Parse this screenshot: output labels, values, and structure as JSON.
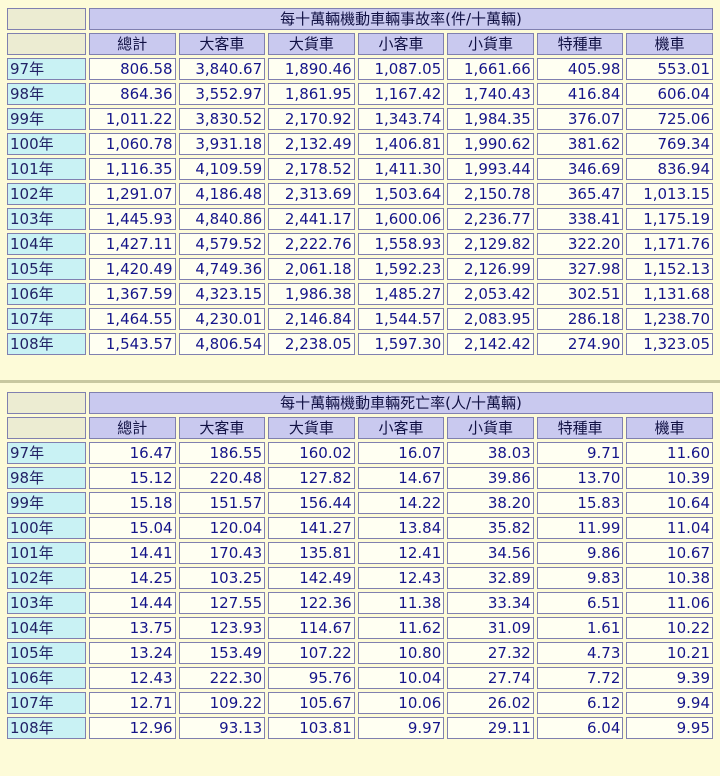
{
  "tables": [
    {
      "title": "每十萬輛機動車輛事故率(件/十萬輛)",
      "headers": [
        "總計",
        "大客車",
        "大貨車",
        "小客車",
        "小貨車",
        "特種車",
        "機車"
      ],
      "rows": [
        {
          "year": "97年",
          "values": [
            "806.58",
            "3,840.67",
            "1,890.46",
            "1,087.05",
            "1,661.66",
            "405.98",
            "553.01"
          ]
        },
        {
          "year": "98年",
          "values": [
            "864.36",
            "3,552.97",
            "1,861.95",
            "1,167.42",
            "1,740.43",
            "416.84",
            "606.04"
          ]
        },
        {
          "year": "99年",
          "values": [
            "1,011.22",
            "3,830.52",
            "2,170.92",
            "1,343.74",
            "1,984.35",
            "376.07",
            "725.06"
          ]
        },
        {
          "year": "100年",
          "values": [
            "1,060.78",
            "3,931.18",
            "2,132.49",
            "1,406.81",
            "1,990.62",
            "381.62",
            "769.34"
          ]
        },
        {
          "year": "101年",
          "values": [
            "1,116.35",
            "4,109.59",
            "2,178.52",
            "1,411.30",
            "1,993.44",
            "346.69",
            "836.94"
          ]
        },
        {
          "year": "102年",
          "values": [
            "1,291.07",
            "4,186.48",
            "2,313.69",
            "1,503.64",
            "2,150.78",
            "365.47",
            "1,013.15"
          ]
        },
        {
          "year": "103年",
          "values": [
            "1,445.93",
            "4,840.86",
            "2,441.17",
            "1,600.06",
            "2,236.77",
            "338.41",
            "1,175.19"
          ]
        },
        {
          "year": "104年",
          "values": [
            "1,427.11",
            "4,579.52",
            "2,222.76",
            "1,558.93",
            "2,129.82",
            "322.20",
            "1,171.76"
          ]
        },
        {
          "year": "105年",
          "values": [
            "1,420.49",
            "4,749.36",
            "2,061.18",
            "1,592.23",
            "2,126.99",
            "327.98",
            "1,152.13"
          ]
        },
        {
          "year": "106年",
          "values": [
            "1,367.59",
            "4,323.15",
            "1,986.38",
            "1,485.27",
            "2,053.42",
            "302.51",
            "1,131.68"
          ]
        },
        {
          "year": "107年",
          "values": [
            "1,464.55",
            "4,230.01",
            "2,146.84",
            "1,544.57",
            "2,083.95",
            "286.18",
            "1,238.70"
          ]
        },
        {
          "year": "108年",
          "values": [
            "1,543.57",
            "4,806.54",
            "2,238.05",
            "1,597.30",
            "2,142.42",
            "274.90",
            "1,323.05"
          ]
        }
      ]
    },
    {
      "title": "每十萬輛機動車輛死亡率(人/十萬輛)",
      "headers": [
        "總計",
        "大客車",
        "大貨車",
        "小客車",
        "小貨車",
        "特種車",
        "機車"
      ],
      "rows": [
        {
          "year": "97年",
          "values": [
            "16.47",
            "186.55",
            "160.02",
            "16.07",
            "38.03",
            "9.71",
            "11.60"
          ]
        },
        {
          "year": "98年",
          "values": [
            "15.12",
            "220.48",
            "127.82",
            "14.67",
            "39.86",
            "13.70",
            "10.39"
          ]
        },
        {
          "year": "99年",
          "values": [
            "15.18",
            "151.57",
            "156.44",
            "14.22",
            "38.20",
            "15.83",
            "10.64"
          ]
        },
        {
          "year": "100年",
          "values": [
            "15.04",
            "120.04",
            "141.27",
            "13.84",
            "35.82",
            "11.99",
            "11.04"
          ]
        },
        {
          "year": "101年",
          "values": [
            "14.41",
            "170.43",
            "135.81",
            "12.41",
            "34.56",
            "9.86",
            "10.67"
          ]
        },
        {
          "year": "102年",
          "values": [
            "14.25",
            "103.25",
            "142.49",
            "12.43",
            "32.89",
            "9.83",
            "10.38"
          ]
        },
        {
          "year": "103年",
          "values": [
            "14.44",
            "127.55",
            "122.36",
            "11.38",
            "33.34",
            "6.51",
            "11.06"
          ]
        },
        {
          "year": "104年",
          "values": [
            "13.75",
            "123.93",
            "114.67",
            "11.62",
            "31.09",
            "1.61",
            "10.22"
          ]
        },
        {
          "year": "105年",
          "values": [
            "13.24",
            "153.49",
            "107.22",
            "10.80",
            "27.32",
            "4.73",
            "10.21"
          ]
        },
        {
          "year": "106年",
          "values": [
            "12.43",
            "222.30",
            "95.76",
            "10.04",
            "27.74",
            "7.72",
            "9.39"
          ]
        },
        {
          "year": "107年",
          "values": [
            "12.71",
            "109.22",
            "105.67",
            "10.06",
            "26.02",
            "6.12",
            "9.94"
          ]
        },
        {
          "year": "108年",
          "values": [
            "12.96",
            "93.13",
            "103.81",
            "9.97",
            "29.11",
            "6.04",
            "9.95"
          ]
        }
      ]
    }
  ]
}
